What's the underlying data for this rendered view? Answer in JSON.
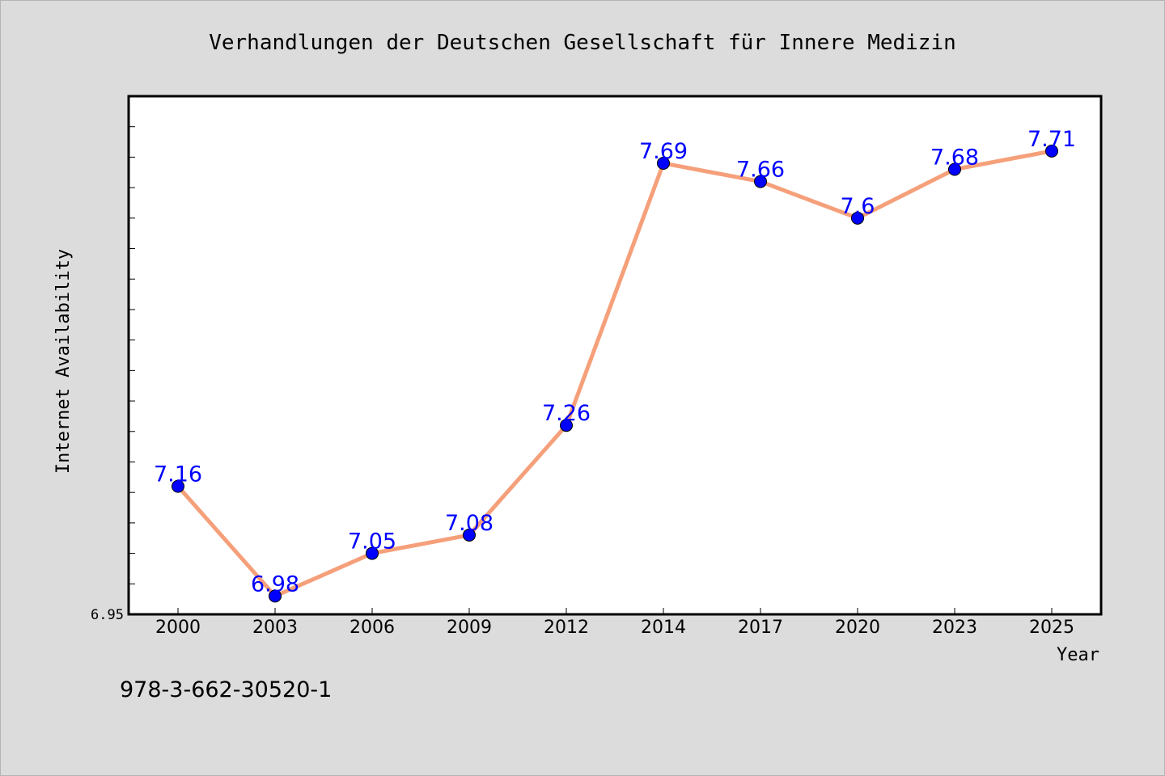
{
  "chart_data": {
    "type": "line",
    "title": "Verhandlungen der Deutschen Gesellschaft für Innere Medizin",
    "xlabel": "Year",
    "ylabel": "Internet Availability",
    "categories": [
      "2000",
      "2003",
      "2006",
      "2009",
      "2012",
      "2014",
      "2017",
      "2020",
      "2023",
      "2025"
    ],
    "series": [
      {
        "values": [
          7.16,
          6.98,
          7.05,
          7.08,
          7.26,
          7.69,
          7.66,
          7.6,
          7.68,
          7.71
        ],
        "labels": [
          "7.16",
          "6.98",
          "7.05",
          "7.08",
          "7.26",
          "7.69",
          "7.66",
          "7.6",
          "7.68",
          "7.71"
        ],
        "line_color": "#f5a07a",
        "marker_color": "#0000ff",
        "label_color": "#0000ff"
      }
    ],
    "ylim": [
      6.95,
      7.8
    ],
    "y_tick_labels": [
      "6.95"
    ],
    "y_minor_step": 0.05,
    "grid": false,
    "legend": "none",
    "footnote": "978-3-662-30520-1"
  }
}
